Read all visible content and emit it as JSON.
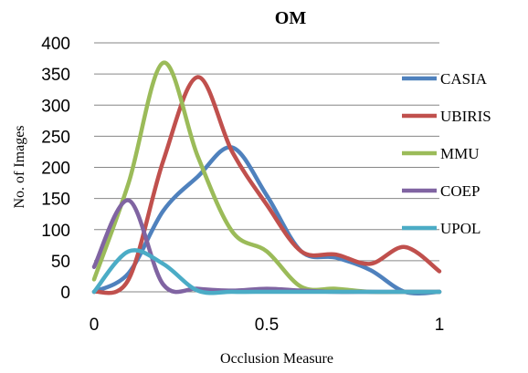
{
  "chart_data": {
    "type": "line",
    "title": "OM",
    "xlabel": "Occlusion Measure",
    "ylabel": "No. of Images",
    "xlim": [
      0,
      1
    ],
    "ylim": [
      0,
      400
    ],
    "xticks": [
      "0",
      "0.5",
      "1"
    ],
    "yticks": [
      "0",
      "50",
      "100",
      "150",
      "200",
      "250",
      "300",
      "350",
      "400"
    ],
    "grid": "horizontal",
    "legend_position": "right",
    "x": [
      0,
      0.1,
      0.2,
      0.3,
      0.4,
      0.5,
      0.6,
      0.7,
      0.8,
      0.9,
      1.0
    ],
    "series": [
      {
        "name": "CASIA",
        "color": "#4F81BD",
        "values": [
          0,
          30,
          130,
          185,
          232,
          155,
          65,
          55,
          35,
          0,
          0
        ]
      },
      {
        "name": "UBIRIS",
        "color": "#C0504D",
        "values": [
          0,
          20,
          210,
          345,
          225,
          140,
          65,
          60,
          45,
          72,
          33
        ]
      },
      {
        "name": "MMU",
        "color": "#9BBB59",
        "values": [
          20,
          175,
          368,
          218,
          97,
          65,
          8,
          5,
          0,
          0,
          0
        ]
      },
      {
        "name": "COEP",
        "color": "#8064A2",
        "values": [
          40,
          147,
          12,
          5,
          2,
          5,
          2,
          0,
          0,
          0,
          0
        ]
      },
      {
        "name": "UPOL",
        "color": "#4BACC6",
        "values": [
          0,
          65,
          45,
          2,
          0,
          0,
          0,
          0,
          0,
          0,
          0
        ]
      }
    ]
  }
}
